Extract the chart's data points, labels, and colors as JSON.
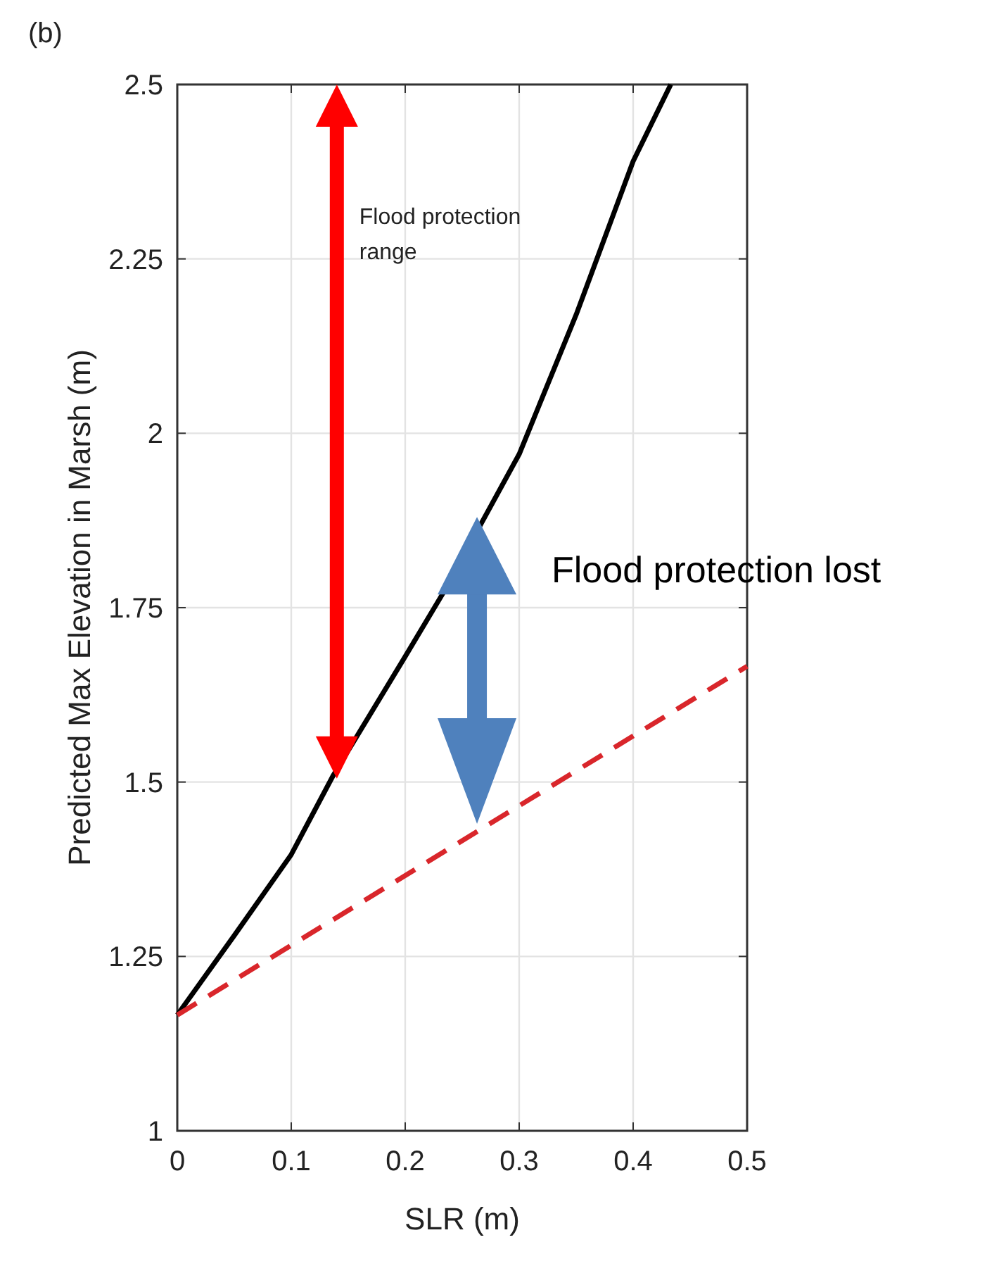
{
  "chart_data": {
    "type": "line",
    "title": "(b)",
    "xlabel": "SLR (m)",
    "ylabel": "Predicted Max Elevation in Marsh  (m)",
    "xlim": [
      0,
      0.5
    ],
    "ylim": [
      1,
      2.5
    ],
    "xticks": [
      0,
      0.1,
      0.2,
      0.3,
      0.4,
      0.5
    ],
    "yticks": [
      1,
      1.25,
      1.5,
      1.75,
      2,
      2.25,
      2.5
    ],
    "grid": true,
    "series": [
      {
        "color": "#000000",
        "line_style": "solid",
        "x": [
          0,
          0.05,
          0.1,
          0.137,
          0.2,
          0.234,
          0.3,
          0.35,
          0.4,
          0.433
        ],
        "values": [
          1.166,
          1.28,
          1.396,
          1.51,
          1.68,
          1.773,
          1.97,
          2.17,
          2.39,
          2.5
        ]
      },
      {
        "color": "#d9262b",
        "line_style": "dashed",
        "x": [
          0,
          0.5
        ],
        "values": [
          1.166,
          1.666
        ]
      }
    ],
    "annotations": [
      "Flood protection range",
      "Flood protection lost"
    ]
  }
}
